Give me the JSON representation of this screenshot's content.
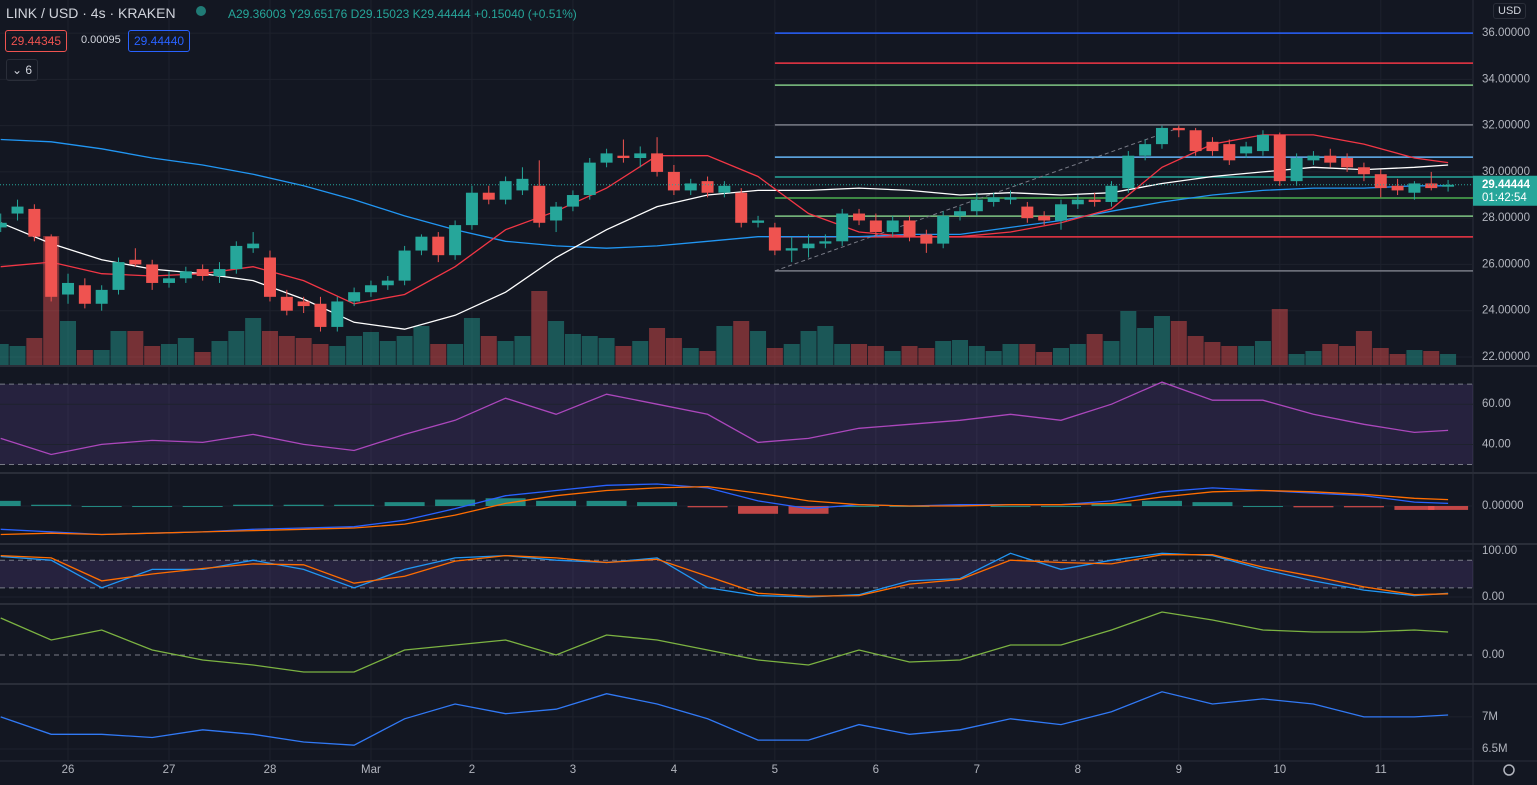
{
  "header": {
    "symbol": "LINK / USD · 4s · KRAKEN",
    "open": "A29.36003",
    "high": "Y29.65176",
    "low": "D29.15023",
    "close": "K29.44444",
    "change": "+0.15040 (+0.51%)",
    "bid": "29.44345",
    "spread": "0.00095",
    "ask": "29.44440",
    "indicators": "6",
    "currency": "USD"
  },
  "chart_data": {
    "type": "candlestick",
    "categories": [
      null,
      null,
      null,
      null,
      "26",
      null,
      null,
      null,
      null,
      null,
      "27",
      null,
      null,
      null,
      null,
      null,
      "28",
      null,
      null,
      null,
      null,
      null,
      "Mar",
      null,
      null,
      null,
      null,
      null,
      "2",
      null,
      null,
      null,
      null,
      null,
      "3",
      null,
      null,
      null,
      null,
      null,
      "4",
      null,
      null,
      null,
      null,
      null,
      "5",
      null,
      null,
      null,
      null,
      null,
      "6",
      null,
      null,
      null,
      null,
      null,
      "7",
      null,
      null,
      null,
      null,
      null,
      "8",
      null,
      null,
      null,
      null,
      null,
      "9",
      null,
      null,
      null,
      null,
      null,
      "10",
      null,
      null,
      null,
      null,
      null,
      "11",
      null,
      null,
      null,
      null
    ],
    "candles": [
      [
        27.6,
        28.2,
        27.4,
        27.8
      ],
      [
        28.2,
        28.8,
        27.9,
        28.5
      ],
      [
        28.4,
        28.6,
        27.0,
        27.2
      ],
      [
        27.2,
        27.3,
        24.4,
        24.6
      ],
      [
        24.7,
        25.6,
        24.3,
        25.2
      ],
      [
        25.1,
        25.4,
        24.1,
        24.3
      ],
      [
        24.3,
        25.1,
        24.0,
        24.9
      ],
      [
        24.9,
        26.3,
        24.7,
        26.1
      ],
      [
        26.2,
        26.7,
        25.9,
        26.0
      ],
      [
        26.0,
        26.2,
        24.9,
        25.2
      ],
      [
        25.2,
        25.7,
        25.0,
        25.4
      ],
      [
        25.4,
        25.9,
        25.2,
        25.7
      ],
      [
        25.8,
        26.0,
        25.3,
        25.5
      ],
      [
        25.5,
        26.1,
        25.2,
        25.8
      ],
      [
        25.8,
        27.0,
        25.6,
        26.8
      ],
      [
        26.7,
        27.4,
        26.5,
        26.9
      ],
      [
        26.3,
        26.6,
        24.4,
        24.6
      ],
      [
        24.6,
        24.9,
        23.8,
        24.0
      ],
      [
        24.4,
        24.6,
        23.9,
        24.2
      ],
      [
        24.3,
        24.6,
        23.1,
        23.3
      ],
      [
        23.3,
        24.6,
        23.1,
        24.4
      ],
      [
        24.4,
        25.0,
        24.2,
        24.8
      ],
      [
        24.8,
        25.3,
        24.6,
        25.1
      ],
      [
        25.1,
        25.5,
        24.9,
        25.3
      ],
      [
        25.3,
        26.8,
        25.1,
        26.6
      ],
      [
        26.6,
        27.3,
        26.4,
        27.2
      ],
      [
        27.2,
        27.4,
        26.1,
        26.4
      ],
      [
        26.4,
        27.9,
        26.2,
        27.7
      ],
      [
        27.7,
        29.4,
        27.5,
        29.1
      ],
      [
        29.1,
        29.4,
        28.6,
        28.8
      ],
      [
        28.8,
        29.8,
        28.6,
        29.6
      ],
      [
        29.2,
        30.2,
        29.0,
        29.7
      ],
      [
        29.4,
        30.5,
        27.6,
        27.8
      ],
      [
        27.9,
        28.7,
        27.4,
        28.5
      ],
      [
        28.5,
        29.2,
        28.3,
        29.0
      ],
      [
        29.0,
        30.6,
        28.8,
        30.4
      ],
      [
        30.4,
        31.0,
        30.2,
        30.8
      ],
      [
        30.7,
        31.4,
        30.4,
        30.6
      ],
      [
        30.6,
        31.1,
        30.2,
        30.8
      ],
      [
        30.8,
        31.5,
        29.8,
        30.0
      ],
      [
        30.0,
        30.3,
        29.0,
        29.2
      ],
      [
        29.2,
        29.7,
        29.0,
        29.5
      ],
      [
        29.6,
        29.8,
        28.9,
        29.1
      ],
      [
        29.1,
        29.6,
        28.9,
        29.4
      ],
      [
        29.1,
        29.3,
        27.6,
        27.8
      ],
      [
        27.8,
        28.1,
        27.6,
        27.9
      ],
      [
        27.6,
        27.8,
        26.4,
        26.6
      ],
      [
        26.6,
        27.2,
        26.1,
        26.7
      ],
      [
        26.7,
        27.3,
        26.3,
        26.9
      ],
      [
        26.9,
        27.3,
        26.7,
        27.0
      ],
      [
        27.0,
        28.4,
        26.8,
        28.2
      ],
      [
        28.2,
        28.4,
        27.7,
        27.9
      ],
      [
        27.9,
        28.2,
        27.2,
        27.4
      ],
      [
        27.4,
        28.1,
        27.2,
        27.9
      ],
      [
        27.9,
        28.1,
        27.0,
        27.2
      ],
      [
        27.3,
        27.5,
        26.5,
        26.9
      ],
      [
        26.9,
        28.3,
        26.7,
        28.1
      ],
      [
        28.1,
        28.5,
        27.9,
        28.3
      ],
      [
        28.3,
        29.1,
        28.1,
        28.8
      ],
      [
        28.7,
        29.1,
        28.5,
        28.9
      ],
      [
        28.8,
        29.2,
        28.6,
        28.9
      ],
      [
        28.5,
        28.7,
        27.8,
        28.0
      ],
      [
        28.1,
        28.3,
        27.7,
        27.9
      ],
      [
        27.9,
        28.8,
        27.5,
        28.6
      ],
      [
        28.6,
        29.0,
        28.4,
        28.8
      ],
      [
        28.8,
        29.1,
        28.5,
        28.7
      ],
      [
        28.7,
        29.6,
        28.5,
        29.4
      ],
      [
        29.3,
        30.9,
        29.1,
        30.7
      ],
      [
        30.7,
        31.4,
        30.5,
        31.2
      ],
      [
        31.2,
        32.0,
        31.0,
        31.9
      ],
      [
        31.9,
        32.0,
        31.5,
        31.8
      ],
      [
        31.8,
        31.9,
        30.7,
        30.9
      ],
      [
        31.3,
        31.5,
        30.7,
        30.9
      ],
      [
        31.2,
        31.4,
        30.3,
        30.5
      ],
      [
        30.8,
        31.3,
        30.6,
        31.1
      ],
      [
        30.9,
        31.8,
        30.7,
        31.6
      ],
      [
        31.6,
        31.7,
        29.4,
        29.6
      ],
      [
        29.6,
        30.8,
        29.4,
        30.6
      ],
      [
        30.5,
        30.9,
        30.3,
        30.7
      ],
      [
        30.7,
        31.0,
        30.2,
        30.4
      ],
      [
        30.6,
        30.8,
        30.0,
        30.2
      ],
      [
        30.2,
        30.4,
        29.6,
        29.9
      ],
      [
        29.9,
        30.1,
        28.9,
        29.3
      ],
      [
        29.4,
        29.7,
        29.0,
        29.2
      ],
      [
        29.1,
        29.6,
        28.8,
        29.5
      ],
      [
        29.5,
        30.0,
        29.2,
        29.3
      ],
      [
        29.36003,
        29.65176,
        29.15023,
        29.44444
      ]
    ],
    "volume": [
      22,
      20,
      28,
      130,
      45,
      16,
      16,
      35,
      35,
      20,
      22,
      28,
      14,
      25,
      35,
      48,
      35,
      30,
      28,
      22,
      20,
      30,
      34,
      25,
      30,
      40,
      22,
      22,
      48,
      30,
      25,
      30,
      75,
      45,
      32,
      30,
      28,
      20,
      25,
      38,
      28,
      18,
      15,
      40,
      45,
      35,
      18,
      22,
      35,
      40,
      22,
      22,
      20,
      15,
      20,
      18,
      25,
      26,
      20,
      15,
      22,
      22,
      14,
      18,
      22,
      32,
      25,
      55,
      38,
      50,
      45,
      30,
      24,
      20,
      20,
      25,
      57,
      12,
      15,
      22,
      20,
      35,
      18,
      12,
      16,
      15,
      12
    ],
    "up_color": "#26a69a",
    "down_color": "#ef5350",
    "ylim": [
      21.61,
      37.43
    ],
    "yticks": [
      {
        "value": 36,
        "label": "36.00000"
      },
      {
        "value": 34,
        "label": "34.00000"
      },
      {
        "value": 32,
        "label": "32.00000"
      },
      {
        "value": 30,
        "label": "30.00000"
      },
      {
        "value": 28,
        "label": "28.00000"
      },
      {
        "value": 26,
        "label": "26.00000"
      },
      {
        "value": 24,
        "label": "24.00000"
      },
      {
        "value": 22,
        "label": "22.00000"
      }
    ],
    "line_x": [
      0,
      3,
      6,
      9,
      12,
      15,
      18,
      21,
      24,
      27,
      30,
      33,
      36,
      39,
      42,
      45,
      48,
      51,
      54,
      57,
      60,
      63,
      66,
      69,
      72,
      75,
      78,
      81,
      84,
      86
    ],
    "overlays": [
      {
        "color": "#2196f3",
        "values": [
          31.4,
          31.3,
          31.0,
          30.6,
          30.3,
          29.9,
          29.4,
          28.8,
          28.1,
          27.5,
          27.0,
          26.8,
          26.7,
          26.8,
          27.0,
          27.2,
          27.2,
          27.2,
          27.3,
          27.3,
          27.6,
          27.9,
          28.3,
          28.7,
          29.0,
          29.2,
          29.3,
          29.3,
          29.4,
          29.4
        ]
      },
      {
        "color": "#ffffff",
        "values": [
          27.8,
          26.9,
          26.2,
          25.8,
          25.6,
          25.3,
          24.5,
          23.5,
          23.2,
          23.8,
          24.8,
          26.3,
          27.5,
          28.5,
          29.0,
          29.2,
          29.2,
          29.3,
          29.2,
          29.0,
          29.1,
          29.0,
          29.1,
          29.5,
          29.8,
          30.0,
          30.2,
          30.1,
          30.2,
          30.3
        ]
      },
      {
        "color": "#f23645",
        "values": [
          25.9,
          26.1,
          25.6,
          25.5,
          25.6,
          25.9,
          25.3,
          24.3,
          24.7,
          25.9,
          27.5,
          28.3,
          29.3,
          30.7,
          30.7,
          29.8,
          28.2,
          27.4,
          27.2,
          27.2,
          27.4,
          27.8,
          28.4,
          30.2,
          31.2,
          31.6,
          31.6,
          31.2,
          30.6,
          30.4
        ]
      }
    ],
    "fib": {
      "start": 46,
      "levels": [
        36.0,
        34.7,
        33.75,
        32.03,
        30.64,
        29.78,
        28.87,
        28.09,
        27.19,
        25.72
      ],
      "colors": [
        "#2962ff",
        "#f23645",
        "#81c784",
        "#787b86",
        "#64b5f6",
        "#26a69a",
        "#4caf50",
        "#81c784",
        "#f23645",
        "#787b86"
      ]
    },
    "trend": {
      "x": [
        46,
        70
      ],
      "y": [
        25.72,
        31.9
      ]
    },
    "last_price": {
      "value": 29.44444,
      "label": "29.44444",
      "countdown": "01:42:54"
    },
    "panes": [
      {
        "type": "line",
        "ylim": [
          26.3,
          78
        ],
        "yticks": [
          {
            "value": 60,
            "label": "60.00"
          },
          {
            "value": 40,
            "label": "40.00"
          }
        ],
        "band": [
          30,
          70
        ],
        "series": [
          {
            "color": "#ab47bc",
            "values": [
              43,
              35,
              40,
              42,
              41,
              45,
              40,
              37,
              45,
              52,
              63,
              55,
              65,
              60,
              55,
              41,
              43,
              48,
              50,
              52,
              55,
              52,
              60,
              71,
              62,
              62,
              55,
              50,
              46,
              47
            ]
          }
        ]
      },
      {
        "type": "macd",
        "ylim": [
          -1.43,
          1.2
        ],
        "yticks": [
          {
            "value": 0,
            "label": "0.00000"
          }
        ],
        "histogram": [
          0.2,
          0.05,
          0.0,
          0.0,
          0.0,
          0.05,
          0.05,
          0.05,
          0.15,
          0.25,
          0.3,
          0.2,
          0.2,
          0.15,
          -0.05,
          -0.3,
          -0.3,
          0.0,
          0.0,
          0.05,
          0.0,
          0.0,
          0.1,
          0.2,
          0.15,
          0.0,
          -0.05,
          -0.05,
          -0.15,
          -0.15
        ],
        "series": [
          {
            "color": "#2962ff",
            "values": [
              -0.9,
              -1.0,
              -1.1,
              -1.05,
              -1.0,
              -0.9,
              -0.85,
              -0.8,
              -0.55,
              -0.1,
              0.4,
              0.6,
              0.8,
              0.85,
              0.7,
              0.2,
              -0.1,
              0.05,
              0.0,
              0.05,
              0.05,
              0.05,
              0.2,
              0.55,
              0.7,
              0.6,
              0.5,
              0.4,
              0.15,
              0.1
            ]
          },
          {
            "color": "#ff6d00",
            "values": [
              -1.1,
              -1.05,
              -1.1,
              -1.05,
              -1.0,
              -0.95,
              -0.9,
              -0.85,
              -0.7,
              -0.35,
              0.1,
              0.4,
              0.6,
              0.7,
              0.75,
              0.5,
              0.2,
              0.05,
              0.0,
              0.0,
              0.05,
              0.05,
              0.1,
              0.35,
              0.55,
              0.6,
              0.55,
              0.45,
              0.3,
              0.25
            ]
          }
        ]
      },
      {
        "type": "line",
        "ylim": [
          -13,
          110.9
        ],
        "yticks": [
          {
            "value": 100,
            "label": "100.00"
          },
          {
            "value": 0,
            "label": "0.00"
          }
        ],
        "band": [
          20,
          80
        ],
        "series": [
          {
            "color": "#2196f3",
            "values": [
              88,
              80,
              20,
              60,
              60,
              80,
              60,
              20,
              60,
              85,
              90,
              80,
              75,
              85,
              20,
              3,
              0,
              5,
              35,
              40,
              95,
              60,
              80,
              95,
              90,
              60,
              35,
              15,
              3,
              8
            ]
          },
          {
            "color": "#ff6d00",
            "values": [
              90,
              85,
              35,
              50,
              62,
              72,
              70,
              30,
              45,
              78,
              90,
              85,
              75,
              82,
              45,
              8,
              2,
              3,
              28,
              38,
              80,
              75,
              72,
              92,
              92,
              65,
              45,
              22,
              5,
              7
            ]
          }
        ]
      },
      {
        "type": "line",
        "ylim": [
          -0.28,
          0.49
        ],
        "yticks": [
          {
            "value": 0,
            "label": "0.00"
          }
        ],
        "dashed_ticks": true,
        "series": [
          {
            "color": "#7cb342",
            "values": [
              0.37,
              0.15,
              0.25,
              0.05,
              -0.05,
              -0.1,
              -0.17,
              -0.17,
              0.05,
              0.1,
              0.15,
              0.0,
              0.2,
              0.15,
              0.05,
              -0.05,
              -0.1,
              0.05,
              -0.07,
              -0.05,
              0.1,
              0.1,
              0.25,
              0.43,
              0.35,
              0.25,
              0.23,
              0.23,
              0.25,
              0.23
            ]
          }
        ]
      },
      {
        "type": "line",
        "ylim": [
          6330000,
          7480000
        ],
        "yticks": [
          {
            "value": 7000000,
            "label": "7M"
          },
          {
            "value": 6500000,
            "label": "6.5M"
          }
        ],
        "series": [
          {
            "color": "#3179f5",
            "values": [
              7000000,
              6730000,
              6730000,
              6680000,
              6800000,
              6730000,
              6610000,
              6560000,
              6970000,
              7200000,
              7050000,
              7120000,
              7360000,
              7200000,
              6970000,
              6640000,
              6640000,
              6880000,
              6730000,
              6800000,
              6970000,
              6880000,
              7080000,
              7390000,
              7200000,
              7280000,
              7200000,
              7000000,
              7000000,
              7030000
            ]
          }
        ]
      }
    ]
  }
}
